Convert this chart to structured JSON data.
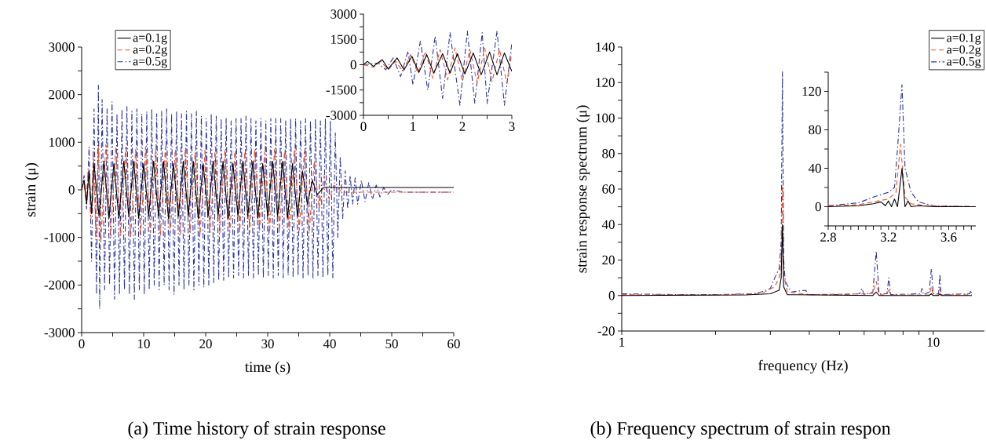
{
  "chart_data": [
    {
      "type": "line",
      "xlabel": "time (s)",
      "ylabel": "strain (μ)",
      "annotations": [
        "(a) Time history of strain response"
      ],
      "legend": "top left",
      "xlim": [
        0,
        60
      ],
      "ylim": [
        -3000,
        3000
      ],
      "xticks": [
        0,
        {
          "value": 5,
          "label": null
        },
        10,
        {
          "value": 15,
          "label": null
        },
        20,
        {
          "value": 25,
          "label": null
        },
        30,
        {
          "value": 35,
          "label": null
        },
        40,
        {
          "value": 45,
          "label": null
        },
        50,
        {
          "value": 55,
          "label": null
        },
        60
      ],
      "yticks": [
        -3000,
        {
          "value": -2500,
          "label": null
        },
        -2000,
        {
          "value": -1500,
          "label": null
        },
        -1000,
        {
          "value": -500,
          "label": null
        },
        0,
        {
          "value": 500,
          "label": null
        },
        1000,
        {
          "value": 1500,
          "label": null
        },
        2000,
        {
          "value": 2500,
          "label": null
        },
        3000
      ],
      "series": [
        {
          "name": "a=0.1g",
          "color": "#000000",
          "line_style": "solid",
          "x": [
            0,
            0.4,
            0.8,
            1.2,
            1.6,
            2.0,
            2.8,
            3.6,
            4.4,
            5.2,
            6.0,
            6.8,
            7.6,
            8.4,
            9.2,
            10.0,
            10.8,
            11.6,
            12.4,
            13.2,
            14.0,
            14.8,
            15.6,
            16.4,
            17.2,
            18.0,
            18.8,
            19.6,
            20.4,
            21.2,
            22.0,
            22.8,
            23.6,
            24.4,
            25.2,
            26.0,
            26.8,
            27.6,
            28.4,
            29.2,
            30.0,
            30.8,
            31.6,
            32.4,
            33.2,
            34.0,
            34.8,
            35.6,
            36.4,
            37.2,
            38.0,
            39.0,
            40.0,
            60
          ],
          "values": [
            0,
            200,
            -300,
            400,
            -500,
            550,
            -550,
            600,
            -600,
            550,
            -600,
            600,
            -550,
            600,
            -600,
            550,
            -550,
            600,
            -550,
            600,
            -600,
            550,
            -550,
            600,
            -550,
            600,
            -600,
            550,
            -550,
            600,
            -550,
            600,
            -600,
            550,
            -550,
            600,
            -550,
            600,
            -600,
            550,
            -550,
            600,
            -550,
            600,
            -600,
            550,
            -550,
            400,
            -300,
            200,
            -100,
            50,
            50,
            50
          ]
        },
        {
          "name": "a=0.2g",
          "color": "#f0502a",
          "line_style": "dashed",
          "x": [
            0,
            0.3,
            0.7,
            1.1,
            1.5,
            1.9,
            2.3,
            2.7,
            3.1,
            3.9,
            4.7,
            5.5,
            6.3,
            7.1,
            7.9,
            8.7,
            9.5,
            10.3,
            11.1,
            11.9,
            12.7,
            13.5,
            14.3,
            15.1,
            15.9,
            16.7,
            17.5,
            18.3,
            19.1,
            19.9,
            20.7,
            21.5,
            22.3,
            23.1,
            23.9,
            24.7,
            25.5,
            26.3,
            27.1,
            27.9,
            28.7,
            29.5,
            30.3,
            31.1,
            31.9,
            32.7,
            33.5,
            34.3,
            35.1,
            35.9,
            36.7,
            37.5,
            38.3,
            39.1,
            39.9,
            40.7,
            42,
            60
          ],
          "values": [
            0,
            200,
            -200,
            400,
            -600,
            800,
            -1000,
            900,
            -1100,
            950,
            -1000,
            900,
            -950,
            900,
            -1000,
            850,
            -950,
            900,
            -900,
            850,
            -950,
            900,
            -900,
            850,
            -950,
            850,
            -900,
            800,
            -950,
            850,
            -900,
            800,
            -900,
            850,
            -900,
            800,
            -850,
            800,
            -900,
            850,
            -850,
            800,
            -900,
            850,
            -850,
            800,
            -900,
            850,
            -850,
            800,
            -900,
            600,
            -400,
            300,
            -200,
            100,
            -50,
            -50
          ]
        },
        {
          "name": "a=0.5g",
          "color": "#2b35a0",
          "line_style": "dashdot",
          "x": [
            0,
            0.4,
            0.8,
            1.2,
            1.6,
            2.0,
            2.4,
            2.7,
            2.9,
            3.3,
            3.7,
            4.1,
            4.5,
            4.9,
            5.3,
            5.7,
            6.1,
            6.5,
            6.9,
            7.3,
            7.7,
            8.1,
            8.5,
            8.9,
            9.3,
            9.7,
            10.1,
            10.5,
            10.9,
            11.3,
            11.7,
            12.1,
            12.5,
            12.9,
            13.3,
            13.7,
            14.1,
            14.5,
            14.9,
            15.3,
            15.7,
            16.1,
            16.5,
            16.9,
            17.3,
            17.7,
            18.1,
            18.5,
            18.9,
            19.3,
            19.7,
            20.1,
            20.5,
            20.9,
            21.3,
            21.7,
            22.1,
            22.5,
            22.9,
            23.3,
            23.7,
            24.1,
            24.5,
            24.9,
            25.3,
            25.7,
            26.1,
            26.5,
            26.9,
            27.3,
            27.7,
            28.1,
            28.5,
            28.9,
            29.3,
            29.7,
            30.1,
            30.5,
            30.9,
            31.3,
            31.7,
            32.1,
            32.5,
            32.9,
            33.3,
            33.7,
            34.1,
            34.5,
            34.9,
            35.3,
            35.7,
            36.1,
            36.5,
            36.9,
            37.3,
            37.7,
            38.1,
            38.5,
            38.9,
            39.3,
            39.7,
            40.1,
            40.5,
            40.9,
            41.3,
            41.7,
            42.1,
            42.5,
            42.9,
            43.3,
            43.7,
            44.1,
            44.5,
            45.1,
            45.7,
            46.3,
            46.9,
            47.5,
            48.1,
            48.7,
            49.3,
            50,
            52,
            60
          ],
          "values": [
            0,
            300,
            -400,
            900,
            -1500,
            1700,
            -2200,
            2200,
            -2500,
            1900,
            -2100,
            1700,
            -2000,
            1850,
            -2300,
            1600,
            -2200,
            1700,
            -2100,
            1750,
            -2200,
            1650,
            -2300,
            1700,
            -2100,
            1600,
            -2200,
            1650,
            -2100,
            1700,
            -2000,
            1600,
            -2100,
            1650,
            -2000,
            1700,
            -2100,
            1600,
            -2200,
            1650,
            -2000,
            1600,
            -2100,
            1650,
            -2000,
            1600,
            -2100,
            1650,
            -2000,
            1550,
            -2050,
            1500,
            -2000,
            1600,
            -1950,
            1550,
            -1900,
            1500,
            -1900,
            1500,
            -1850,
            1450,
            -1850,
            1500,
            -1800,
            1500,
            -1850,
            1550,
            -1800,
            1500,
            -1850,
            1450,
            -1800,
            1500,
            -1850,
            1450,
            -1800,
            1500,
            -1850,
            1500,
            -1800,
            1500,
            -1850,
            1450,
            -1800,
            1500,
            -1850,
            1500,
            -1800,
            1450,
            -1850,
            1500,
            -1800,
            1450,
            -1850,
            1500,
            -1800,
            1450,
            -1850,
            1500,
            -1800,
            1450,
            -1850,
            1200,
            -1000,
            700,
            -600,
            400,
            -400,
            300,
            -300,
            250,
            -300,
            200,
            -250,
            150,
            -200,
            100,
            -150,
            50,
            -100,
            0,
            -50,
            -50
          ]
        }
      ]
    },
    {
      "type": "line",
      "xlim": [
        0,
        3
      ],
      "ylim": [
        -3000,
        3000
      ],
      "xticks": [
        0,
        {
          "value": 0.5,
          "label": null
        },
        1,
        {
          "value": 1.5,
          "label": null
        },
        2,
        {
          "value": 2.5,
          "label": null
        },
        3
      ],
      "yticks": [
        -3000,
        {
          "value": -2250,
          "label": null
        },
        -1500,
        {
          "value": -750,
          "label": null
        },
        0,
        {
          "value": 750,
          "label": null
        },
        1500,
        {
          "value": 2250,
          "label": null
        },
        3000
      ],
      "series": [
        {
          "color": "#000000",
          "line_style": "solid",
          "x": [
            0,
            0.08,
            0.2,
            0.38,
            0.5,
            0.68,
            0.82,
            0.98,
            1.12,
            1.28,
            1.42,
            1.6,
            1.75,
            1.9,
            2.05,
            2.22,
            2.38,
            2.55,
            2.7,
            2.85,
            3
          ],
          "values": [
            0,
            200,
            -100,
            300,
            -250,
            400,
            -300,
            500,
            -450,
            600,
            -500,
            650,
            -500,
            650,
            -550,
            700,
            -600,
            750,
            -600,
            700,
            -400
          ]
        },
        {
          "color": "#f0502a",
          "line_style": "dashed",
          "x": [
            0,
            0.2,
            0.35,
            0.5,
            0.65,
            0.8,
            0.95,
            1.1,
            1.25,
            1.4,
            1.55,
            1.7,
            1.85,
            2.0,
            2.15,
            2.3,
            2.45,
            2.6,
            2.75,
            2.9,
            3
          ],
          "values": [
            0,
            -150,
            200,
            -300,
            200,
            -400,
            600,
            -500,
            800,
            -800,
            900,
            -900,
            1000,
            -1000,
            900,
            -1100,
            1000,
            -1000,
            900,
            -1100,
            700
          ]
        },
        {
          "color": "#2b35a0",
          "line_style": "dashdot",
          "x": [
            0,
            0.3,
            0.45,
            0.6,
            0.75,
            0.9,
            1.0,
            1.15,
            1.3,
            1.45,
            1.6,
            1.75,
            1.95,
            2.1,
            2.25,
            2.4,
            2.5,
            2.7,
            2.85,
            3
          ],
          "values": [
            0,
            100,
            -300,
            400,
            -700,
            800,
            -1200,
            1400,
            -1500,
            1700,
            -2000,
            1900,
            -2400,
            2000,
            -2300,
            1900,
            -2300,
            2000,
            -2400,
            1300
          ]
        }
      ]
    },
    {
      "type": "line",
      "xlabel": "frequency (Hz)",
      "ylabel": "strain response spectrum (μ)",
      "annotations": [
        "(b) Frequency spectrum of strain respon"
      ],
      "legend": "top right",
      "log": "x",
      "xlim": [
        1,
        14.6
      ],
      "ylim": [
        -20,
        140
      ],
      "xticks": [
        1,
        {
          "value": 2,
          "label": null
        },
        {
          "value": 3,
          "label": null
        },
        {
          "value": 4,
          "label": null
        },
        {
          "value": 5,
          "label": null
        },
        {
          "value": 6,
          "label": null
        },
        {
          "value": 7,
          "label": null
        },
        {
          "value": 8,
          "label": null
        },
        {
          "value": 9,
          "label": null
        },
        10
      ],
      "yticks": [
        -20,
        {
          "value": -10,
          "label": null
        },
        0,
        {
          "value": 10,
          "label": null
        },
        20,
        {
          "value": 30,
          "label": null
        },
        40,
        {
          "value": 50,
          "label": null
        },
        60,
        {
          "value": 70,
          "label": null
        },
        80,
        {
          "value": 90,
          "label": null
        },
        100,
        {
          "value": 110,
          "label": null
        },
        120,
        {
          "value": 130,
          "label": null
        },
        140
      ],
      "series": [
        {
          "name": "a=0.1g",
          "color": "#000000",
          "line_style": "solid",
          "x": [
            1,
            2.5,
            3.0,
            3.2,
            3.25,
            3.28,
            3.31,
            3.4,
            6.4,
            6.56,
            6.7,
            9.7,
            9.86,
            10.0,
            10.4,
            10.5,
            10.6,
            13.3
          ],
          "values": [
            0,
            0.3,
            1,
            3,
            10,
            40,
            5,
            0.5,
            0,
            2,
            0,
            0,
            1,
            0,
            0,
            1,
            0,
            0
          ]
        },
        {
          "name": "a=0.2g",
          "color": "#f0502a",
          "line_style": "dashed",
          "x": [
            1,
            2,
            2.8,
            3.1,
            3.2,
            3.25,
            3.28,
            3.31,
            3.4,
            4,
            6.4,
            6.56,
            6.7,
            7.1,
            7.2,
            7.3,
            9.7,
            9.86,
            10,
            10.4,
            10.5,
            10.6,
            13.3
          ],
          "values": [
            0.5,
            0.3,
            1,
            5,
            10,
            20,
            62,
            12,
            2,
            0.5,
            1,
            8,
            0.5,
            0.3,
            4,
            0.3,
            0.3,
            5,
            0.3,
            0.3,
            4,
            0.3,
            0.5
          ]
        },
        {
          "name": "a=0.5g",
          "color": "#2b35a0",
          "line_style": "dashdot",
          "x": [
            1,
            1.5,
            2,
            2.6,
            2.8,
            3.0,
            3.1,
            3.2,
            3.25,
            3.28,
            3.31,
            3.35,
            3.5,
            3.9,
            3.95,
            5,
            5.8,
            5.9,
            6.0,
            6.4,
            6.56,
            6.7,
            7.1,
            7.2,
            7.3,
            9.1,
            9.2,
            9.3,
            9.7,
            9.86,
            10.0,
            10.4,
            10.5,
            10.6,
            13.1,
            13.2,
            13.3
          ],
          "values": [
            1,
            0.5,
            0.5,
            1,
            2,
            4,
            10,
            15,
            30,
            126,
            20,
            8,
            2,
            3,
            0.5,
            0.5,
            1,
            4,
            0.5,
            2,
            25,
            1,
            1,
            10,
            0.5,
            1,
            4,
            0.5,
            2,
            15,
            1,
            1,
            12,
            0.5,
            1,
            3,
            0.5
          ]
        }
      ]
    },
    {
      "type": "line",
      "xlim": [
        2.8,
        3.78
      ],
      "ylim": [
        -20,
        140
      ],
      "xticks": [
        2.8,
        {
          "value": 2.85,
          "label": null
        },
        {
          "value": 2.9,
          "label": null
        },
        {
          "value": 2.95,
          "label": null
        },
        {
          "value": 3.0,
          "label": null
        },
        {
          "value": 3.05,
          "label": null
        },
        {
          "value": 3.1,
          "label": null
        },
        {
          "value": 3.15,
          "label": null
        },
        3.2,
        {
          "value": 3.25,
          "label": null
        },
        {
          "value": 3.3,
          "label": null
        },
        {
          "value": 3.35,
          "label": null
        },
        {
          "value": 3.4,
          "label": null
        },
        {
          "value": 3.45,
          "label": null
        },
        {
          "value": 3.5,
          "label": null
        },
        {
          "value": 3.55,
          "label": null
        },
        3.6,
        {
          "value": 3.65,
          "label": null
        },
        {
          "value": 3.7,
          "label": null
        },
        {
          "value": 3.75,
          "label": null
        }
      ],
      "yticks": [
        {
          "value": -20,
          "label": null
        },
        0,
        {
          "value": 20,
          "label": null
        },
        40,
        {
          "value": 60,
          "label": null
        },
        80,
        {
          "value": 100,
          "label": null
        },
        120,
        {
          "value": 140,
          "label": null
        }
      ],
      "series": [
        {
          "color": "#000000",
          "line_style": "solid",
          "x": [
            2.8,
            3.0,
            3.1,
            3.15,
            3.18,
            3.2,
            3.22,
            3.24,
            3.26,
            3.29,
            3.31,
            3.33,
            3.35,
            3.4,
            3.5,
            3.78
          ],
          "values": [
            0,
            1,
            3,
            5,
            1,
            6,
            0,
            8,
            0,
            40,
            0,
            6,
            0,
            1,
            0,
            0
          ]
        },
        {
          "color": "#f0502a",
          "line_style": "dashed",
          "x": [
            2.8,
            3.0,
            3.1,
            3.2,
            3.25,
            3.28,
            3.31,
            3.35,
            3.45,
            3.78
          ],
          "values": [
            1,
            2,
            5,
            8,
            15,
            65,
            10,
            3,
            1,
            0
          ]
        },
        {
          "color": "#2b35a0",
          "line_style": "dashdot",
          "x": [
            2.8,
            3.0,
            3.1,
            3.2,
            3.24,
            3.26,
            3.29,
            3.31,
            3.35,
            3.4,
            3.5,
            3.78
          ],
          "values": [
            1,
            4,
            10,
            15,
            20,
            60,
            127,
            40,
            15,
            5,
            1,
            0
          ]
        }
      ]
    }
  ]
}
